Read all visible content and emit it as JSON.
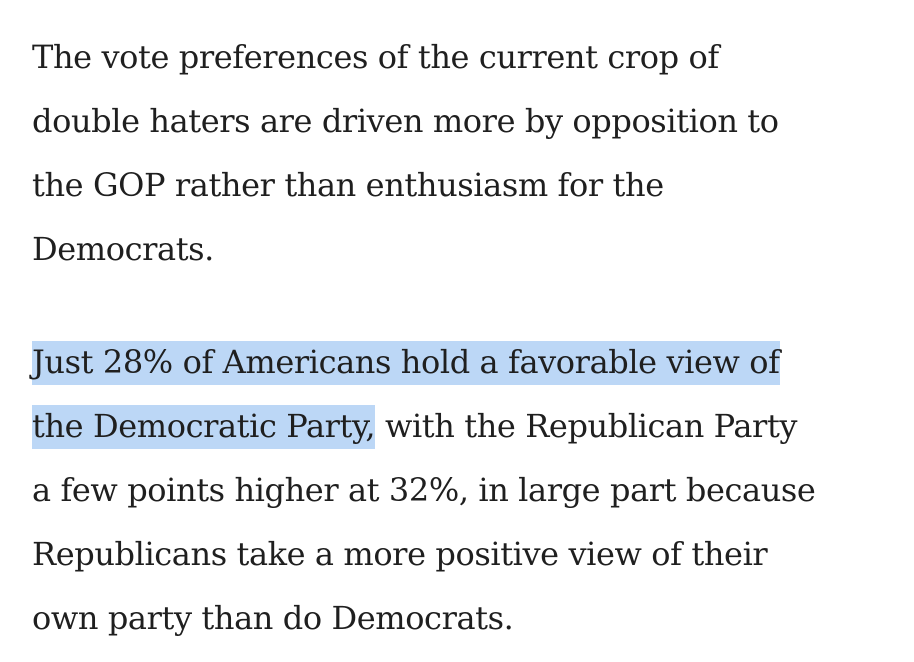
{
  "article": {
    "paragraph_1": {
      "lines": [
        "The vote preferences of the current crop of",
        "double haters are driven more by opposition to",
        "the GOP rather than enthusiasm for the",
        "Democrats."
      ]
    },
    "paragraph_2": {
      "line_1_highlighted": "Just 28% of Americans hold a favorable view of",
      "line_2_highlighted": "the Democratic Party,",
      "line_2_rest": " with the Republican Party",
      "line_3": "a few points higher at 32%, in large part because",
      "line_4": "Republicans take a more positive view of their",
      "line_5": "own party than do Democrats."
    },
    "highlight_color": "#bcd7f6",
    "text_color": "#1f1f1f"
  }
}
